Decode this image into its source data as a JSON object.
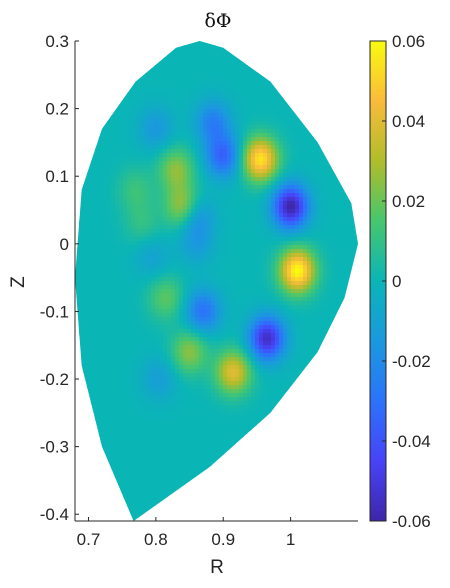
{
  "chart_data": {
    "type": "heatmap",
    "title": "δΦ",
    "xlabel": "R",
    "ylabel": "Z",
    "xlim": [
      0.68,
      1.1
    ],
    "ylim": [
      -0.41,
      0.3
    ],
    "xticks": [
      0.7,
      0.8,
      0.9,
      1.0
    ],
    "xtick_labels": [
      "0.7",
      "0.8",
      "0.9",
      "1"
    ],
    "yticks": [
      0.3,
      0.2,
      0.1,
      0,
      -0.1,
      -0.2,
      -0.3,
      -0.4
    ],
    "ytick_labels": [
      "0.3",
      "0.2",
      "0.1",
      "0",
      "-0.1",
      "-0.2",
      "-0.3",
      "-0.4"
    ],
    "colorbar": {
      "colormap": "parula",
      "range": [
        -0.06,
        0.06
      ],
      "ticks": [
        0.06,
        0.04,
        0.02,
        0,
        -0.02,
        -0.04,
        -0.06
      ],
      "tick_labels": [
        "0.06",
        "0.04",
        "0.02",
        "0",
        "-0.02",
        "-0.04",
        "-0.06"
      ]
    },
    "domain_boundary": {
      "description": "D-shaped plasma cross-section",
      "R": [
        0.767,
        0.72,
        0.69,
        0.68,
        0.69,
        0.72,
        0.77,
        0.83,
        0.865,
        0.9,
        0.97,
        1.04,
        1.09,
        1.1,
        1.08,
        1.04,
        0.97,
        0.88,
        0.767
      ],
      "Z": [
        -0.41,
        -0.3,
        -0.18,
        -0.05,
        0.08,
        0.17,
        0.24,
        0.29,
        0.3,
        0.29,
        0.24,
        0.15,
        0.06,
        0.0,
        -0.08,
        -0.16,
        -0.25,
        -0.33,
        -0.41
      ]
    },
    "field_extrema": [
      {
        "R": 0.955,
        "Z": 0.125,
        "value": 0.055
      },
      {
        "R": 1.0,
        "Z": 0.055,
        "value": -0.06
      },
      {
        "R": 1.01,
        "Z": -0.04,
        "value": 0.06
      },
      {
        "R": 0.965,
        "Z": -0.14,
        "value": -0.055
      },
      {
        "R": 0.915,
        "Z": -0.19,
        "value": 0.04
      },
      {
        "R": 0.9,
        "Z": 0.13,
        "value": -0.035
      },
      {
        "R": 0.86,
        "Z": 0.04,
        "value": -0.02
      },
      {
        "R": 0.87,
        "Z": -0.1,
        "value": -0.03
      },
      {
        "R": 0.885,
        "Z": 0.18,
        "value": -0.025
      },
      {
        "R": 0.83,
        "Z": 0.11,
        "value": 0.025
      },
      {
        "R": 0.84,
        "Z": 0.055,
        "value": 0.03
      },
      {
        "R": 0.85,
        "Z": -0.16,
        "value": 0.025
      },
      {
        "R": 0.8,
        "Z": 0.17,
        "value": -0.015
      },
      {
        "R": 0.795,
        "Z": -0.02,
        "value": -0.01
      },
      {
        "R": 0.77,
        "Z": 0.08,
        "value": 0.012
      },
      {
        "R": 0.815,
        "Z": -0.08,
        "value": 0.018
      },
      {
        "R": 0.805,
        "Z": -0.2,
        "value": -0.012
      },
      {
        "R": 0.86,
        "Z": 0.0,
        "value": -0.012
      },
      {
        "R": 0.78,
        "Z": 0.03,
        "value": 0.01
      }
    ]
  }
}
